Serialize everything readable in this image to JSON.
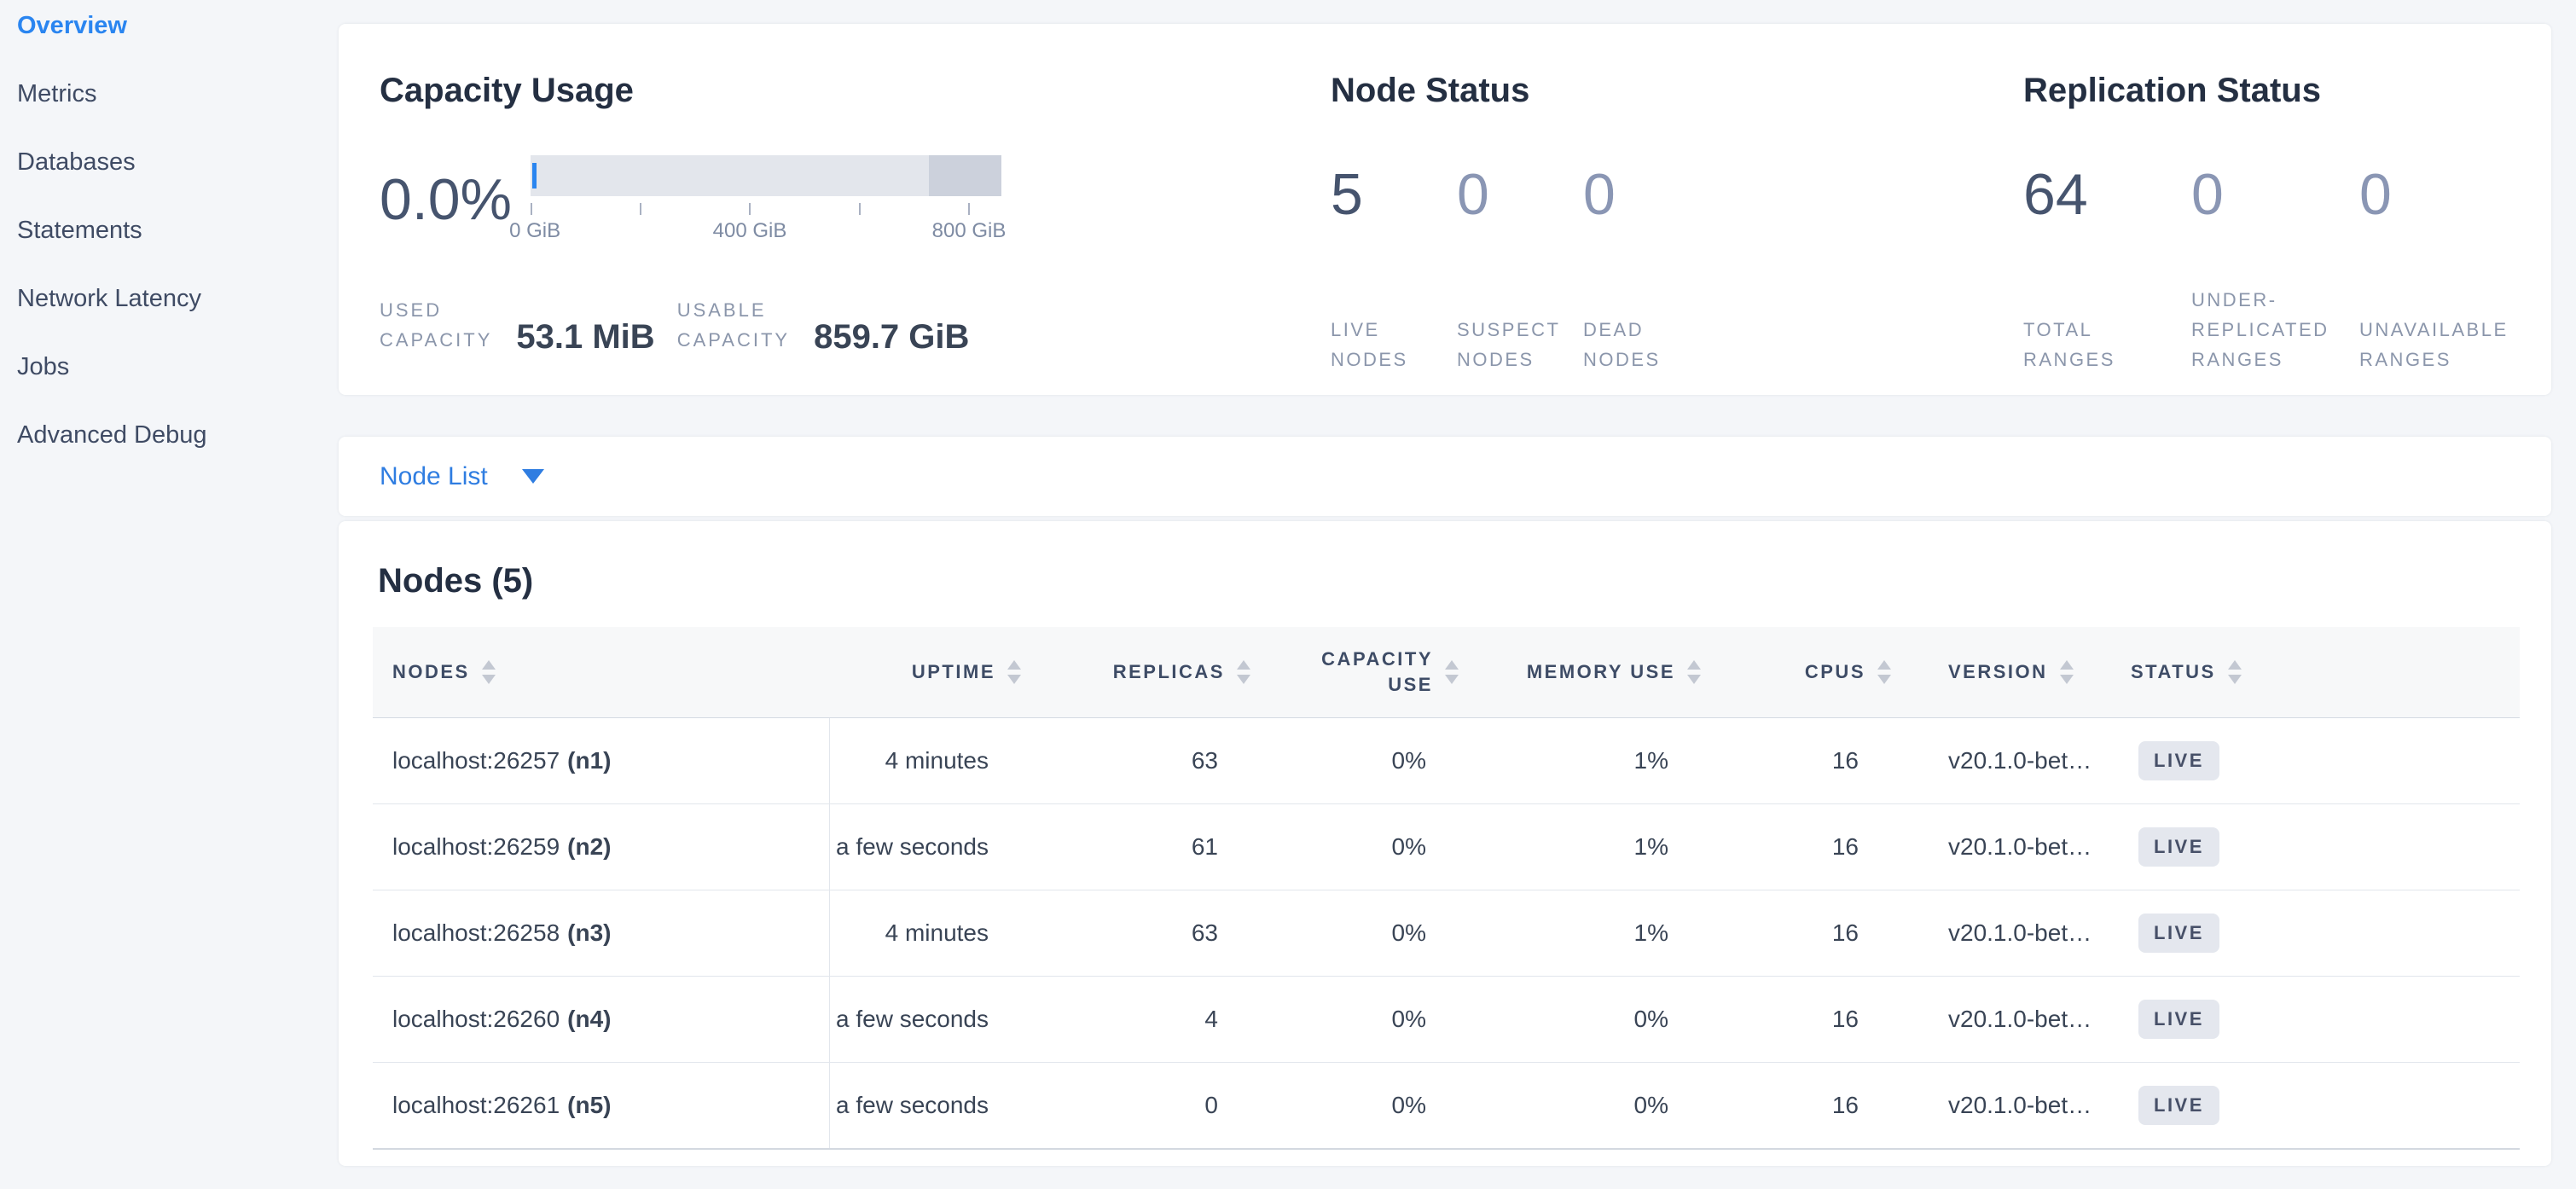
{
  "colors": {
    "accent_blue": "#2a85f0",
    "link_blue": "#2f7de1",
    "badge_bg": "#e4e7ee",
    "bar_light": "#e3e6ec",
    "bar_dark": "#ccd1dc",
    "page_bg": "#f4f6f9"
  },
  "sidebar": {
    "items": [
      {
        "label": "Overview",
        "active": true
      },
      {
        "label": "Metrics",
        "active": false
      },
      {
        "label": "Databases",
        "active": false
      },
      {
        "label": "Statements",
        "active": false
      },
      {
        "label": "Network Latency",
        "active": false
      },
      {
        "label": "Jobs",
        "active": false
      },
      {
        "label": "Advanced Debug",
        "active": false
      }
    ]
  },
  "capacity": {
    "title": "Capacity Usage",
    "used_percent": "0.0%",
    "chart": {
      "type": "bar",
      "axis_labels": [
        "0 GiB",
        "400 GiB",
        "800 GiB"
      ],
      "axis_range_gib": [
        0,
        800
      ],
      "bar_total_gib": 859.7,
      "used_percent_value": 0.0
    },
    "used": {
      "label_lines": [
        "USED",
        "CAPACITY"
      ],
      "value": "53.1 MiB"
    },
    "usable": {
      "label_lines": [
        "USABLE",
        "CAPACITY"
      ],
      "value": "859.7 GiB"
    }
  },
  "node_status": {
    "title": "Node Status",
    "stats": [
      {
        "value": "5",
        "label_lines": [
          "LIVE",
          "NODES"
        ],
        "muted": false
      },
      {
        "value": "0",
        "label_lines": [
          "SUSPECT",
          "NODES"
        ],
        "muted": true
      },
      {
        "value": "0",
        "label_lines": [
          "DEAD",
          "NODES"
        ],
        "muted": true
      }
    ]
  },
  "replication_status": {
    "title": "Replication Status",
    "stats": [
      {
        "value": "64",
        "label_lines": [
          "TOTAL",
          "RANGES"
        ],
        "muted": false
      },
      {
        "value": "0",
        "label_lines": [
          "UNDER-",
          "REPLICATED",
          "RANGES"
        ],
        "muted": true
      },
      {
        "value": "0",
        "label_lines": [
          "UNAVAILABLE",
          "RANGES"
        ],
        "muted": true
      }
    ]
  },
  "node_list": {
    "label": "Node List"
  },
  "nodes_table": {
    "title": "Nodes (5)",
    "columns": [
      {
        "key": "node",
        "label": "NODES",
        "align": "left"
      },
      {
        "key": "uptime",
        "label": "UPTIME",
        "align": "right"
      },
      {
        "key": "replicas",
        "label": "REPLICAS",
        "align": "right"
      },
      {
        "key": "capacity_use",
        "label_lines": [
          "CAPACITY",
          "USE"
        ],
        "align": "right"
      },
      {
        "key": "memory_use",
        "label": "MEMORY USE",
        "align": "right"
      },
      {
        "key": "cpus",
        "label": "CPUS",
        "align": "right"
      },
      {
        "key": "version",
        "label": "VERSION",
        "align": "left"
      },
      {
        "key": "status",
        "label": "STATUS",
        "align": "left"
      }
    ],
    "rows": [
      {
        "address": "localhost:26257",
        "id": "(n1)",
        "uptime": "4 minutes",
        "replicas": "63",
        "capacity_use": "0%",
        "memory_use": "1%",
        "cpus": "16",
        "version": "v20.1.0-bet…",
        "status": "LIVE"
      },
      {
        "address": "localhost:26259",
        "id": "(n2)",
        "uptime": "a few seconds",
        "replicas": "61",
        "capacity_use": "0%",
        "memory_use": "1%",
        "cpus": "16",
        "version": "v20.1.0-bet…",
        "status": "LIVE"
      },
      {
        "address": "localhost:26258",
        "id": "(n3)",
        "uptime": "4 minutes",
        "replicas": "63",
        "capacity_use": "0%",
        "memory_use": "1%",
        "cpus": "16",
        "version": "v20.1.0-bet…",
        "status": "LIVE"
      },
      {
        "address": "localhost:26260",
        "id": "(n4)",
        "uptime": "a few seconds",
        "replicas": "4",
        "capacity_use": "0%",
        "memory_use": "0%",
        "cpus": "16",
        "version": "v20.1.0-bet…",
        "status": "LIVE"
      },
      {
        "address": "localhost:26261",
        "id": "(n5)",
        "uptime": "a few seconds",
        "replicas": "0",
        "capacity_use": "0%",
        "memory_use": "0%",
        "cpus": "16",
        "version": "v20.1.0-bet…",
        "status": "LIVE"
      }
    ]
  }
}
